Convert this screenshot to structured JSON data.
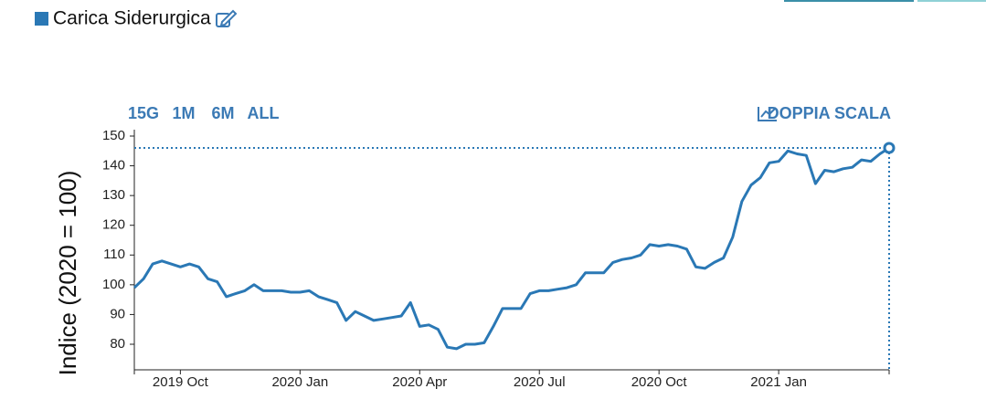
{
  "chart_data": {
    "type": "line",
    "ylabel": "Indice (2020 = 100)",
    "range_buttons": [
      "15G",
      "1M",
      "6M",
      "ALL"
    ],
    "dual_scale_button": "DOPPIA SCALA",
    "categories": [
      null,
      null,
      null,
      null,
      null,
      "2019 Oct",
      null,
      null,
      null,
      null,
      null,
      null,
      null,
      null,
      null,
      null,
      null,
      null,
      "2020 Jan",
      null,
      null,
      null,
      null,
      null,
      null,
      null,
      null,
      null,
      null,
      null,
      null,
      "2020 Apr",
      null,
      null,
      null,
      null,
      null,
      null,
      null,
      null,
      null,
      null,
      null,
      null,
      "2020 Jul",
      null,
      null,
      null,
      null,
      null,
      null,
      null,
      null,
      null,
      null,
      null,
      null,
      "2020 Oct",
      null,
      null,
      null,
      null,
      null,
      null,
      null,
      null,
      null,
      null,
      null,
      null,
      "2021 Jan",
      null,
      null,
      null,
      null,
      null,
      null,
      null,
      null,
      null,
      null,
      null,
      null
    ],
    "series": [
      {
        "name": "Carica Siderurgica",
        "color": "#2a78b5",
        "values": [
          99,
          102,
          107,
          108,
          107,
          106,
          107,
          106,
          102,
          101,
          96,
          97,
          98,
          100,
          98,
          98,
          98,
          97.5,
          97.5,
          98,
          96,
          95,
          94,
          88,
          91,
          89.5,
          88,
          88.5,
          89,
          89.5,
          94,
          86,
          86.5,
          85,
          79,
          78.5,
          80,
          80,
          80.5,
          86,
          92,
          92,
          92,
          97,
          98,
          98,
          98.5,
          99,
          100,
          104,
          104,
          104,
          107.5,
          108.5,
          109,
          110,
          113.5,
          113,
          113.5,
          113,
          112,
          106,
          105.5,
          107.5,
          109,
          116,
          128,
          133.5,
          136,
          141,
          141.5,
          145,
          144,
          143.5,
          134,
          138.5,
          138,
          139,
          139.5,
          142,
          141.5,
          144,
          146
        ]
      }
    ],
    "ylim": [
      71.4,
      150
    ],
    "yticks": [
      80,
      90,
      100,
      110,
      120,
      130,
      140,
      150
    ]
  }
}
